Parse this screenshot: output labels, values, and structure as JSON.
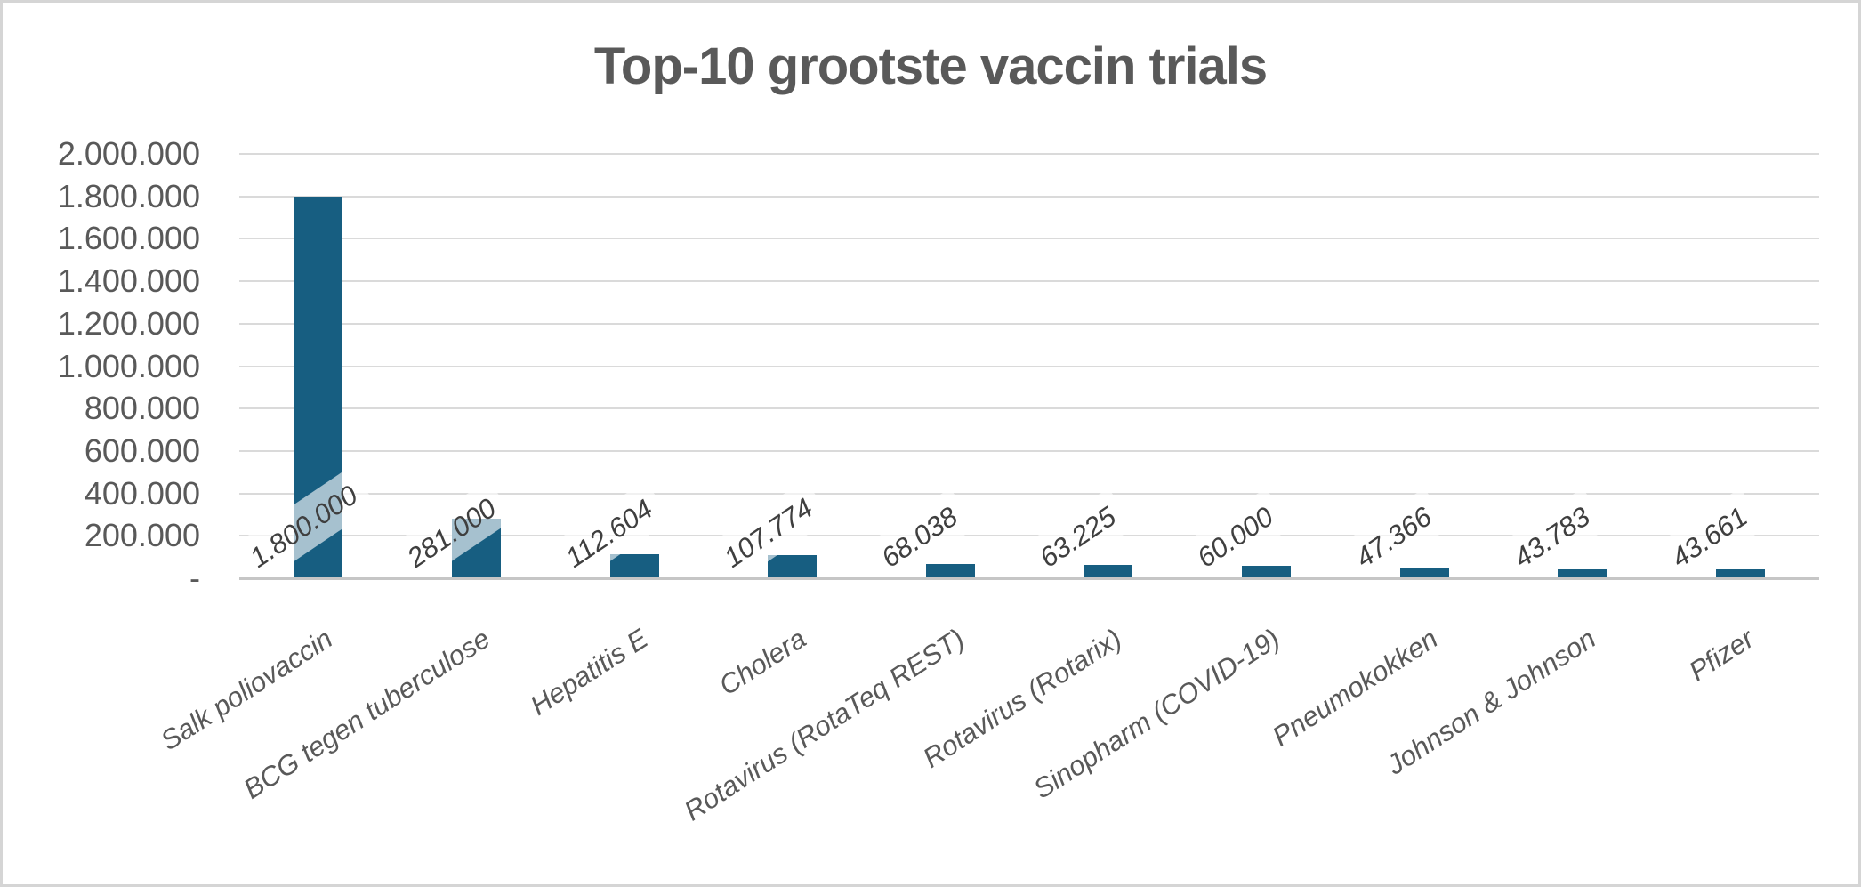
{
  "chart_data": {
    "type": "bar",
    "title": "Top-10 grootste vaccin trials",
    "categories": [
      "Salk poliovaccin",
      "BCG tegen tuberculose",
      "Hepatitis E",
      "Cholera",
      "Rotavirus (RotaTeq REST)",
      "Rotavirus (Rotarix)",
      "Sinopharm (COVID-19)",
      "Pneumokokken",
      "Johnson & Johnson",
      "Pfizer"
    ],
    "values": [
      1800000,
      281000,
      112604,
      107774,
      68038,
      63225,
      60000,
      47366,
      43783,
      43661
    ],
    "value_labels": [
      "1.800.000",
      "281.000",
      "112.604",
      "107.774",
      "68.038",
      "63.225",
      "60.000",
      "47.366",
      "43.783",
      "43.661"
    ],
    "y_tick_labels": [
      "2.000.000",
      "1.800.000",
      "1.600.000",
      "1.400.000",
      "1.200.000",
      "1.000.000",
      "800.000",
      "600.000",
      "400.000",
      "200.000",
      "-"
    ],
    "ylim": [
      0,
      2000000
    ],
    "y_step": 200000,
    "xlabel": "",
    "ylabel": "",
    "legend": "none",
    "grid": "horizontal",
    "number_format": "nl-NL (dot thousands separator, dash for zero)",
    "colors": {
      "bar": "#175e81",
      "title_text": "#595959",
      "axis_text": "#595959",
      "data_label_text": "#3f3f3f",
      "data_label_background": "rgba(255,255,255,0.62)",
      "gridline": "#dadada",
      "axis_line": "#c6c6c6",
      "border": "#d5d5d5",
      "background": "#ffffff"
    }
  }
}
